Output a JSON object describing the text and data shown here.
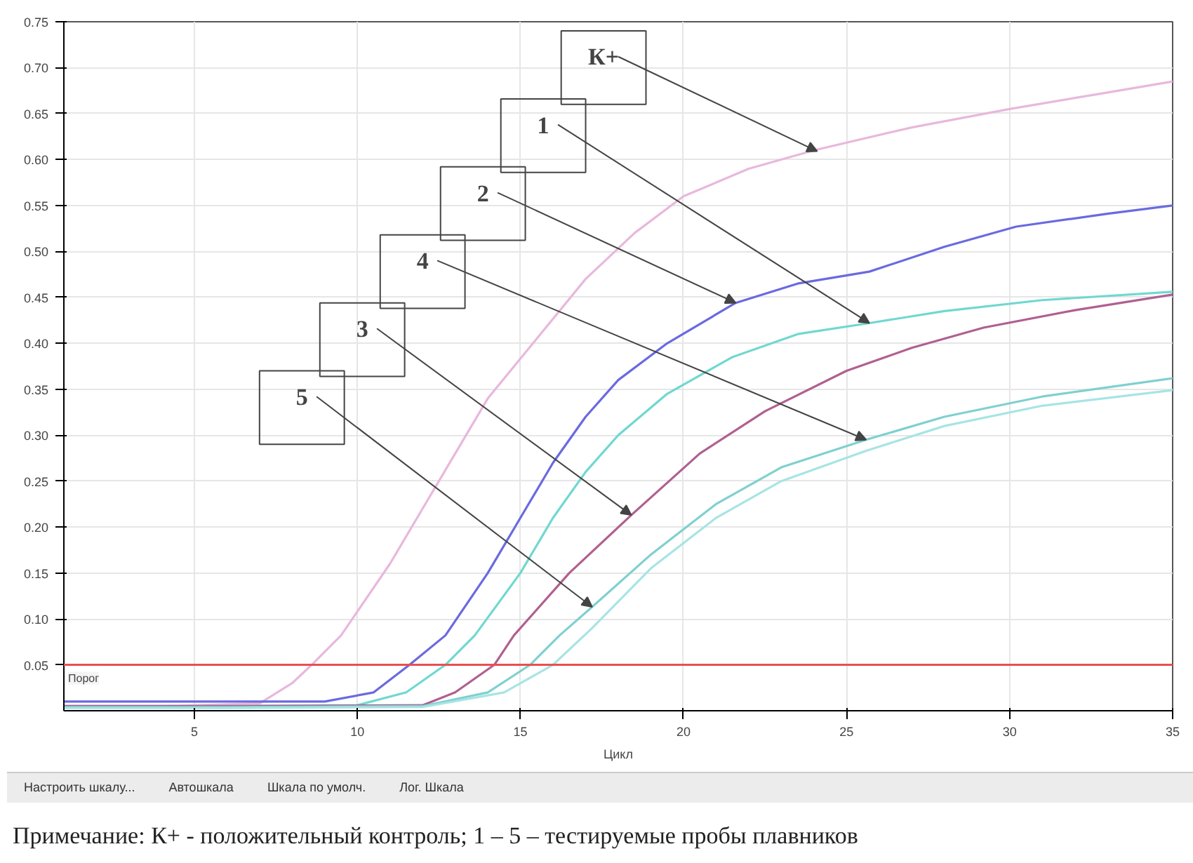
{
  "chart_data": {
    "type": "line",
    "xlabel": "Цикл",
    "xlim": [
      1,
      35
    ],
    "xticks": [
      5,
      10,
      15,
      20,
      25,
      30,
      35
    ],
    "ylim": [
      0,
      0.75
    ],
    "yticks": [
      {
        "value": 0.05,
        "label": "0.05"
      },
      {
        "value": 0.1,
        "label": "0.10"
      },
      {
        "value": 0.15,
        "label": "0.15"
      },
      {
        "value": 0.2,
        "label": "0.20"
      },
      {
        "value": 0.25,
        "label": "0.25"
      },
      {
        "value": 0.3,
        "label": "0.30"
      },
      {
        "value": 0.35,
        "label": "0.35"
      },
      {
        "value": 0.4,
        "label": "0.40"
      },
      {
        "value": 0.45,
        "label": "0.45"
      },
      {
        "value": 0.5,
        "label": "0.50"
      },
      {
        "value": 0.55,
        "label": "0.55"
      },
      {
        "value": 0.6,
        "label": "0.60"
      },
      {
        "value": 0.65,
        "label": "0.65"
      },
      {
        "value": 0.7,
        "label": "0.70"
      },
      {
        "value": 0.75,
        "label": "0.75"
      }
    ],
    "grid": true,
    "series": [
      {
        "color": "#e8b8dc",
        "x": [
          1,
          4,
          7,
          8,
          8.6,
          9.5,
          11,
          12,
          13,
          14,
          15.5,
          17,
          18.5,
          20,
          22,
          24,
          27,
          30,
          33,
          35
        ],
        "values": [
          0.005,
          0.005,
          0.008,
          0.03,
          0.05,
          0.082,
          0.16,
          0.22,
          0.28,
          0.34,
          0.405,
          0.47,
          0.52,
          0.56,
          0.59,
          0.61,
          0.635,
          0.655,
          0.673,
          0.685
        ]
      },
      {
        "color": "#6a6ae0",
        "x": [
          1,
          5,
          9,
          10.5,
          11.6,
          12.7,
          14,
          15,
          16,
          17,
          18,
          19.5,
          21.6,
          23.5,
          25.7,
          28,
          30.2,
          33,
          35
        ],
        "values": [
          0.01,
          0.01,
          0.01,
          0.02,
          0.05,
          0.082,
          0.15,
          0.21,
          0.27,
          0.32,
          0.36,
          0.4,
          0.444,
          0.465,
          0.478,
          0.505,
          0.527,
          0.541,
          0.55
        ]
      },
      {
        "color": "#70d8d0",
        "x": [
          1,
          6,
          10,
          11.5,
          12.7,
          13.6,
          15,
          16,
          17,
          18,
          19.5,
          21.5,
          23.5,
          25.7,
          28,
          31,
          35
        ],
        "values": [
          0.005,
          0.005,
          0.006,
          0.02,
          0.05,
          0.082,
          0.15,
          0.21,
          0.26,
          0.3,
          0.345,
          0.385,
          0.41,
          0.422,
          0.435,
          0.447,
          0.456
        ]
      },
      {
        "color": "#b06090",
        "x": [
          1,
          6,
          12,
          13,
          14.2,
          14.8,
          16.5,
          18.4,
          20.5,
          22.5,
          25,
          27,
          29.2,
          32,
          35
        ],
        "values": [
          0.005,
          0.005,
          0.006,
          0.02,
          0.05,
          0.082,
          0.15,
          0.213,
          0.28,
          0.326,
          0.37,
          0.395,
          0.417,
          0.436,
          0.453
        ]
      },
      {
        "color": "#80d0d0",
        "x": [
          1,
          6,
          12,
          14,
          15.3,
          16.2,
          17.2,
          19,
          21,
          23,
          25.6,
          28,
          31,
          35
        ],
        "values": [
          0.004,
          0.004,
          0.005,
          0.02,
          0.05,
          0.082,
          0.113,
          0.17,
          0.225,
          0.265,
          0.295,
          0.32,
          0.342,
          0.362
        ]
      },
      {
        "color": "#a8e4e4",
        "x": [
          1,
          6,
          12,
          14.5,
          16,
          17.2,
          19,
          21,
          23,
          25.6,
          28,
          31,
          35
        ],
        "values": [
          0.003,
          0.003,
          0.004,
          0.02,
          0.05,
          0.09,
          0.155,
          0.21,
          0.25,
          0.283,
          0.31,
          0.332,
          0.349
        ]
      }
    ],
    "ref_lines": [
      {
        "axis": "y",
        "value": 0.05,
        "label": "Порог",
        "color": "#e85050"
      }
    ],
    "annotations": [
      {
        "text": "К+",
        "x": 24.1,
        "y": 0.609
      },
      {
        "text": "1",
        "x": 25.7,
        "y": 0.422
      },
      {
        "text": "2",
        "x": 21.6,
        "y": 0.444
      },
      {
        "text": "4",
        "x": 25.6,
        "y": 0.295
      },
      {
        "text": "3",
        "x": 18.4,
        "y": 0.213
      },
      {
        "text": "5",
        "x": 17.2,
        "y": 0.113
      },
      "Настроить шкалу...",
      "Автошкала",
      "Шкала по умолч.",
      "Лог. Шкала",
      "Примечание: К+ - положительный контроль; 1 – 5 – тестируемые пробы плавников"
    ]
  }
}
